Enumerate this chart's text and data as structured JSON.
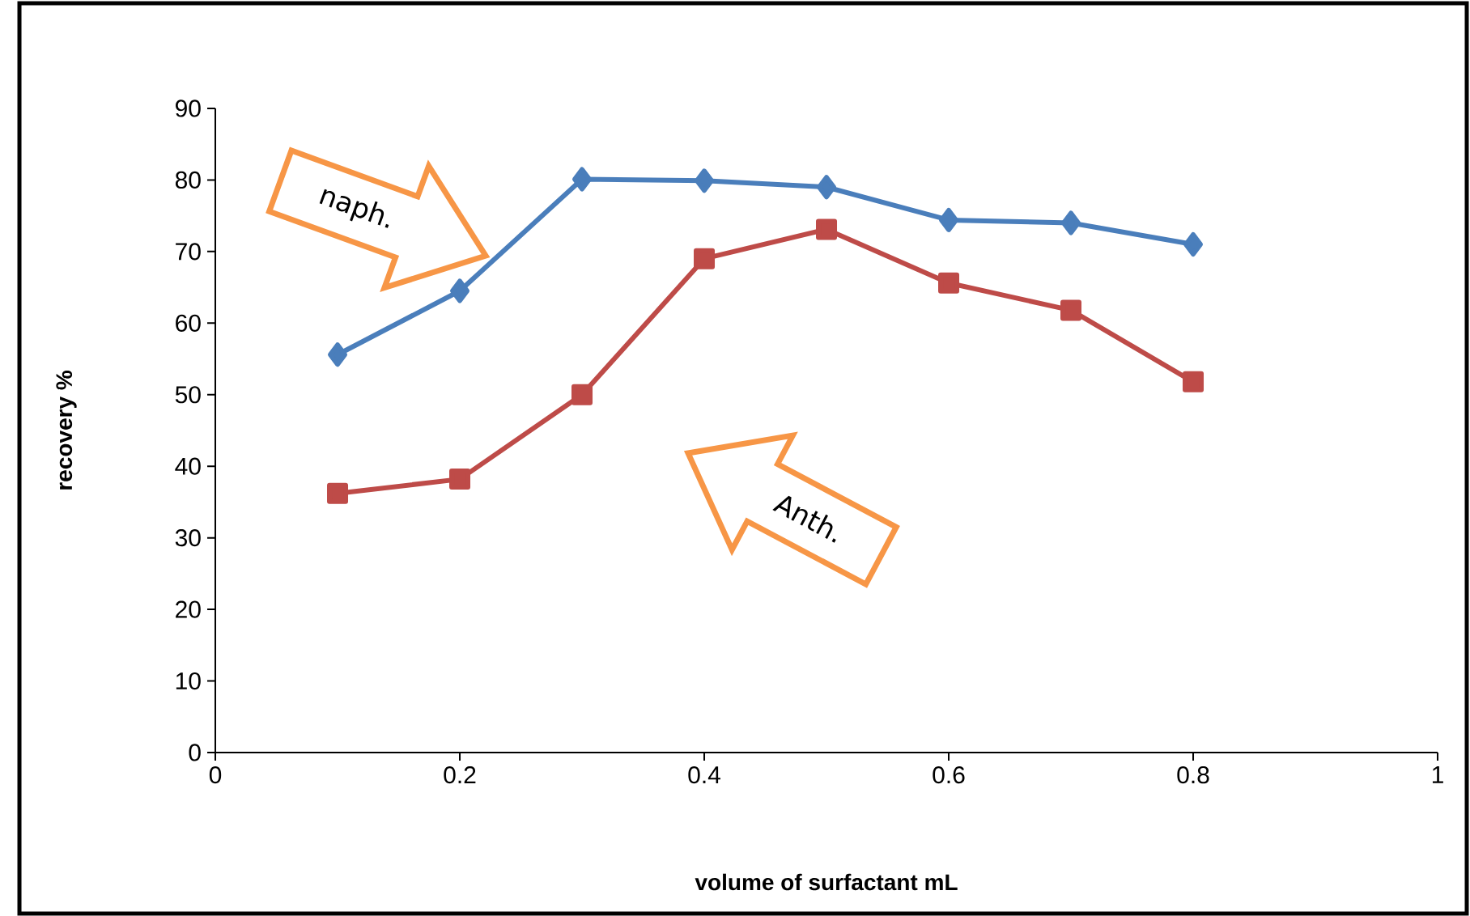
{
  "chart_data": {
    "type": "line",
    "xlabel": "volume of surfactant mL",
    "ylabel": "recovery %",
    "x": [
      0.1,
      0.2,
      0.3,
      0.4,
      0.5,
      0.6,
      0.7,
      0.8
    ],
    "series": [
      {
        "color": "#4a7ebb",
        "marker": "diamond",
        "values": [
          55.6,
          64.5,
          80.1,
          79.9,
          79.0,
          74.4,
          74.0,
          71.0
        ]
      },
      {
        "color": "#be4b48",
        "marker": "square",
        "values": [
          36.2,
          38.2,
          50.0,
          69.0,
          73.1,
          65.6,
          61.8,
          51.8
        ]
      }
    ],
    "annotations": [
      "naph.",
      "Anth."
    ],
    "xlim": [
      0,
      1
    ],
    "xticks": [
      0,
      0.2,
      0.4,
      0.6,
      0.8,
      1
    ],
    "ylim": [
      0,
      90
    ],
    "yticks": [
      0,
      10,
      20,
      30,
      40,
      50,
      60,
      70,
      80,
      90
    ],
    "grid": false,
    "legend": false,
    "line_style": "solid"
  }
}
